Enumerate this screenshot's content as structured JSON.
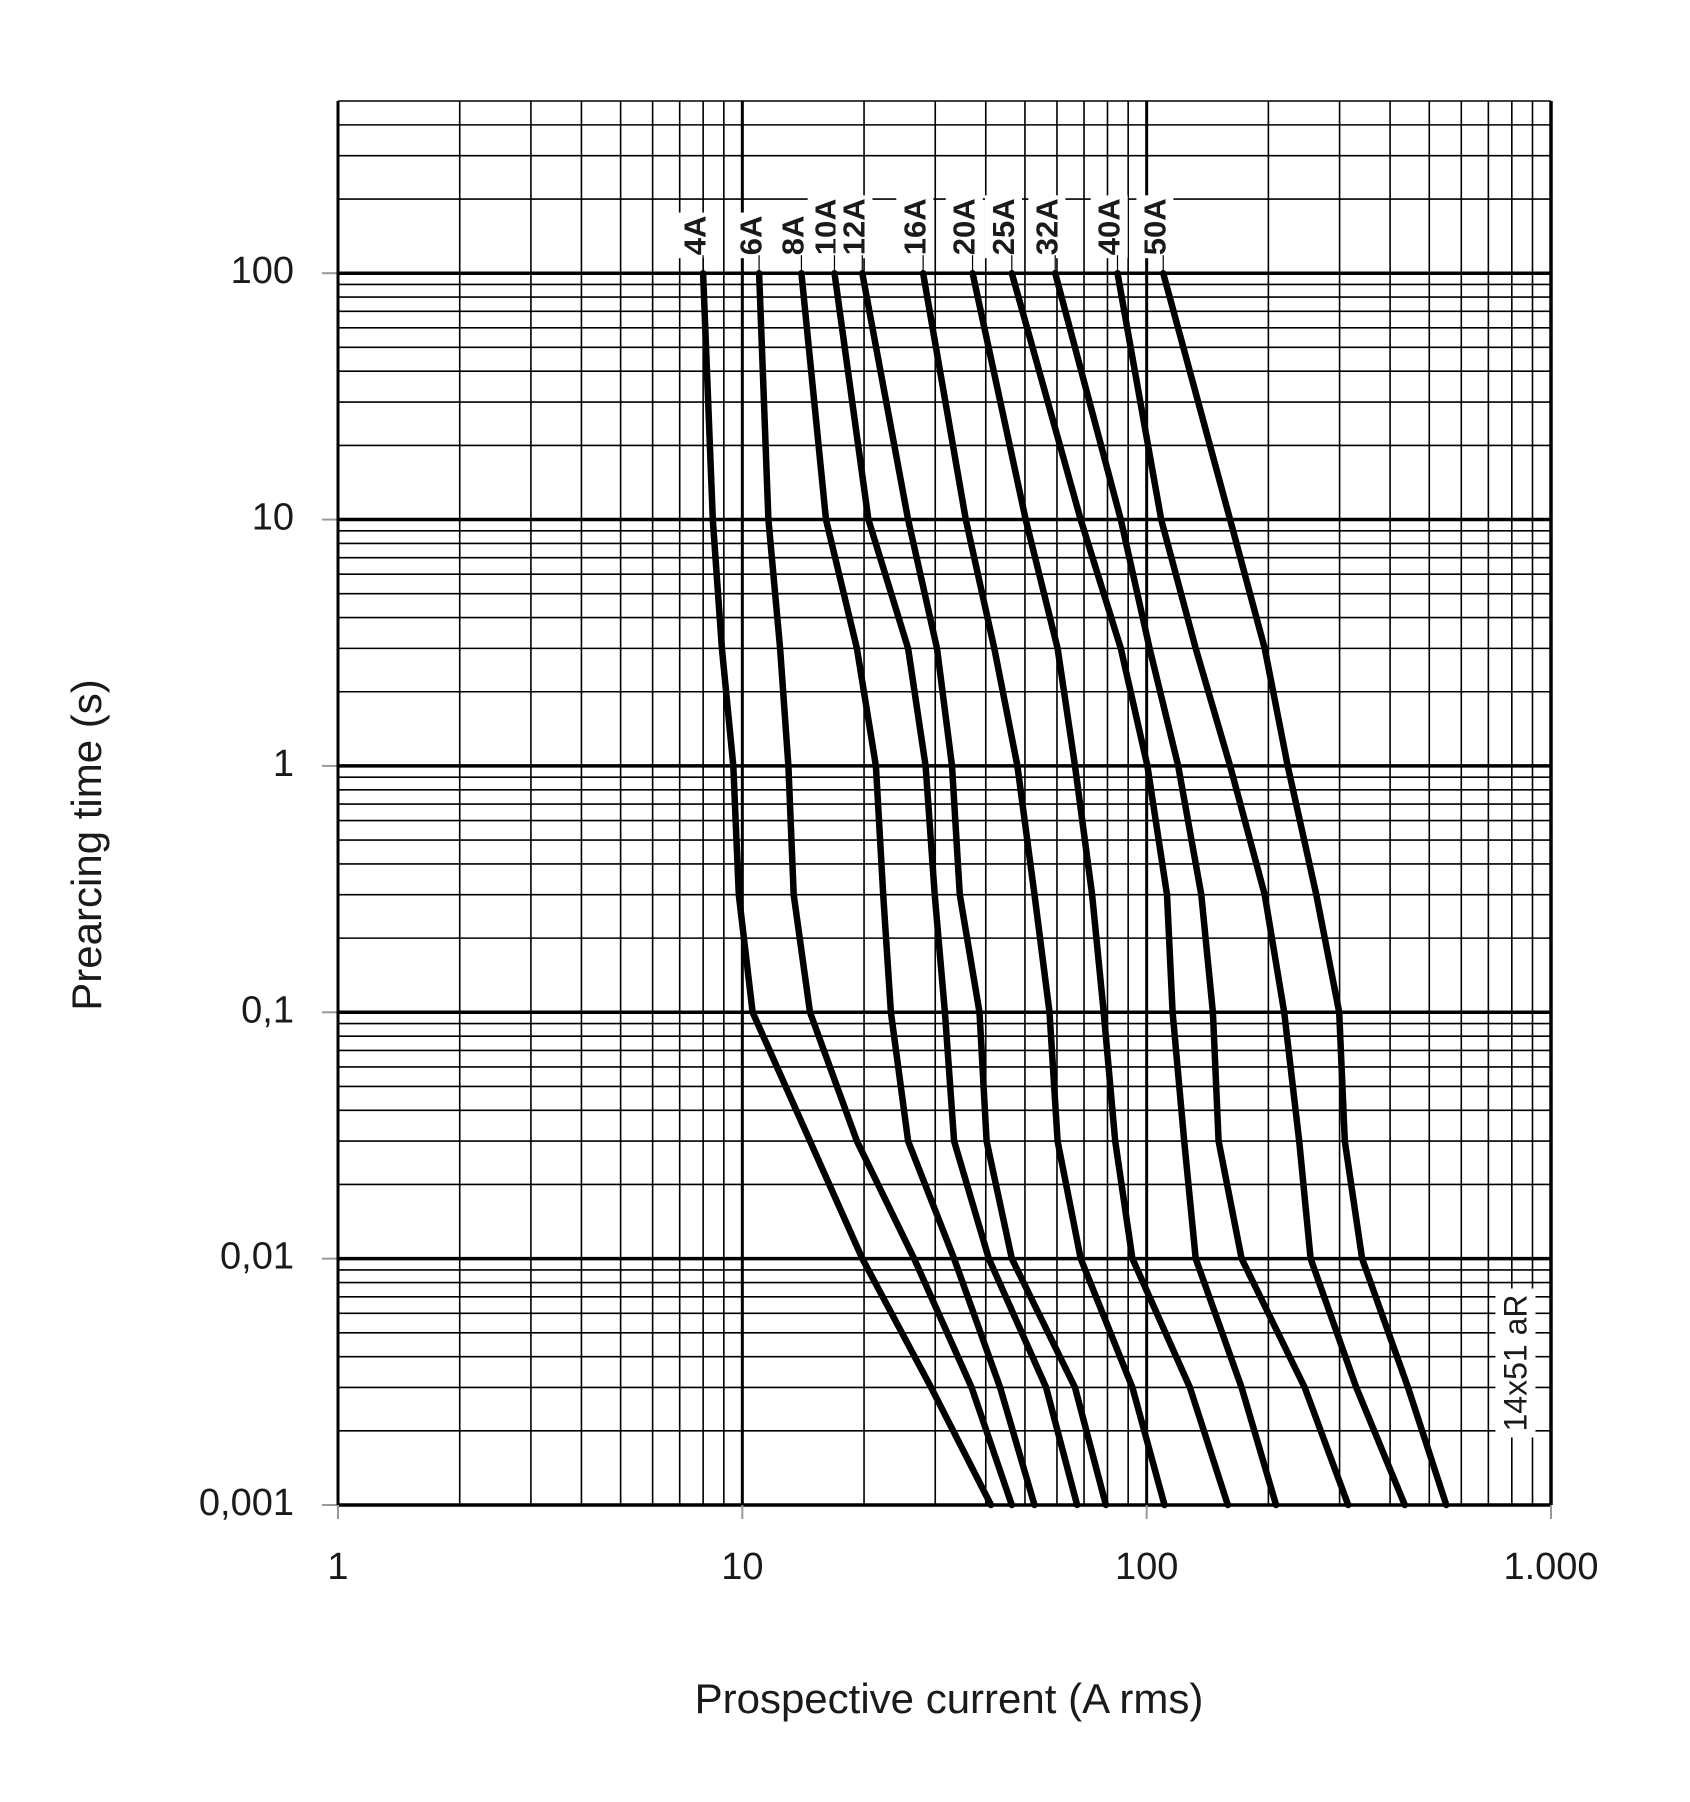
{
  "chart_data": {
    "type": "line",
    "x_label": "Prospective current (A rms)",
    "y_label": "Prearcing time (s)",
    "annotation": "14x51 aR",
    "log_x": true,
    "log_y": true,
    "grid": true,
    "minor_grid": true,
    "xlim": [
      1,
      1000
    ],
    "xticks": [
      1,
      10,
      100,
      {
        "value": 1000,
        "label": "1.000"
      }
    ],
    "ylim": [
      0.001,
      500
    ],
    "yticks": [
      100,
      10,
      1,
      {
        "value": 0.1,
        "label": "0,1"
      },
      {
        "value": 0.01,
        "label": "0,01"
      },
      {
        "value": 0.001,
        "label": "0,001"
      }
    ],
    "series": [
      {
        "name": "4A",
        "color": "#000000",
        "x": [
          8.0,
          8.45,
          8.9,
          9.5,
          9.8,
          10.6,
          14.7,
          19.8,
          29.3,
          41.2
        ],
        "values": [
          100,
          10,
          3,
          1,
          0.3,
          0.1,
          0.03,
          0.01,
          0.003,
          0.001
        ]
      },
      {
        "name": "6A",
        "color": "#000000",
        "x": [
          11.0,
          11.6,
          12.4,
          13.0,
          13.4,
          14.7,
          19.2,
          26.6,
          36.9,
          46.4
        ],
        "values": [
          100,
          10,
          3,
          1,
          0.3,
          0.1,
          0.03,
          0.01,
          0.003,
          0.001
        ]
      },
      {
        "name": "8A",
        "color": "#000000",
        "x": [
          14.0,
          16.1,
          19.2,
          21.4,
          22.3,
          23.3,
          25.7,
          33.4,
          43.4,
          52.8
        ],
        "values": [
          100,
          10,
          3,
          1,
          0.3,
          0.1,
          0.03,
          0.01,
          0.003,
          0.001
        ]
      },
      {
        "name": "10A",
        "color": "#000000",
        "x": [
          16.9,
          20.5,
          25.7,
          28.4,
          29.9,
          31.7,
          33.4,
          40.7,
          56.4,
          67.3
        ],
        "values": [
          100,
          10,
          3,
          1,
          0.3,
          0.1,
          0.03,
          0.01,
          0.003,
          0.001
        ]
      },
      {
        "name": "12A",
        "color": "#000000",
        "x": [
          19.8,
          25.7,
          30.3,
          33.0,
          34.5,
          38.6,
          40.2,
          46.4,
          66.5,
          79.3
        ],
        "values": [
          100,
          10,
          3,
          1,
          0.3,
          0.1,
          0.03,
          0.01,
          0.003,
          0.001
        ]
      },
      {
        "name": "16A",
        "color": "#000000",
        "x": [
          28.0,
          35.7,
          42.0,
          47.9,
          52.8,
          57.5,
          60.2,
          68.7,
          92.2,
          110.7
        ],
        "values": [
          100,
          10,
          3,
          1,
          0.3,
          0.1,
          0.03,
          0.01,
          0.003,
          0.001
        ]
      },
      {
        "name": "20A",
        "color": "#000000",
        "x": [
          37.1,
          50.2,
          60.2,
          66.5,
          73.3,
          78.3,
          83.6,
          92.2,
          127.9,
          158.7
        ],
        "values": [
          100,
          10,
          3,
          1,
          0.3,
          0.1,
          0.03,
          0.01,
          0.003,
          0.001
        ]
      },
      {
        "name": "25A",
        "color": "#000000",
        "x": [
          46.4,
          68.7,
          86.3,
          100.4,
          112.3,
          115.9,
          123.8,
          132.2,
          171.7,
          209
        ],
        "values": [
          100,
          10,
          3,
          1,
          0.3,
          0.1,
          0.03,
          0.01,
          0.003,
          0.001
        ]
      },
      {
        "name": "32A",
        "color": "#000000",
        "x": [
          59.4,
          86.3,
          101.7,
          119.7,
          136.5,
          145.8,
          150.6,
          171.7,
          246,
          315
        ],
        "values": [
          100,
          10,
          3,
          1,
          0.3,
          0.1,
          0.03,
          0.01,
          0.003,
          0.001
        ]
      },
      {
        "name": "40A",
        "color": "#000000",
        "x": [
          84.7,
          108.6,
          132.2,
          160.8,
          195.8,
          218.8,
          238.4,
          254.3,
          330,
          435
        ],
        "values": [
          100,
          10,
          3,
          1,
          0.3,
          0.1,
          0.03,
          0.01,
          0.003,
          0.001
        ]
      },
      {
        "name": "50A",
        "color": "#000000",
        "x": [
          109.9,
          160.8,
          195.8,
          223.2,
          262.7,
          299.4,
          309,
          341,
          443,
          551
        ],
        "values": [
          100,
          10,
          3,
          1,
          0.3,
          0.1,
          0.03,
          0.01,
          0.003,
          0.001
        ]
      }
    ]
  }
}
